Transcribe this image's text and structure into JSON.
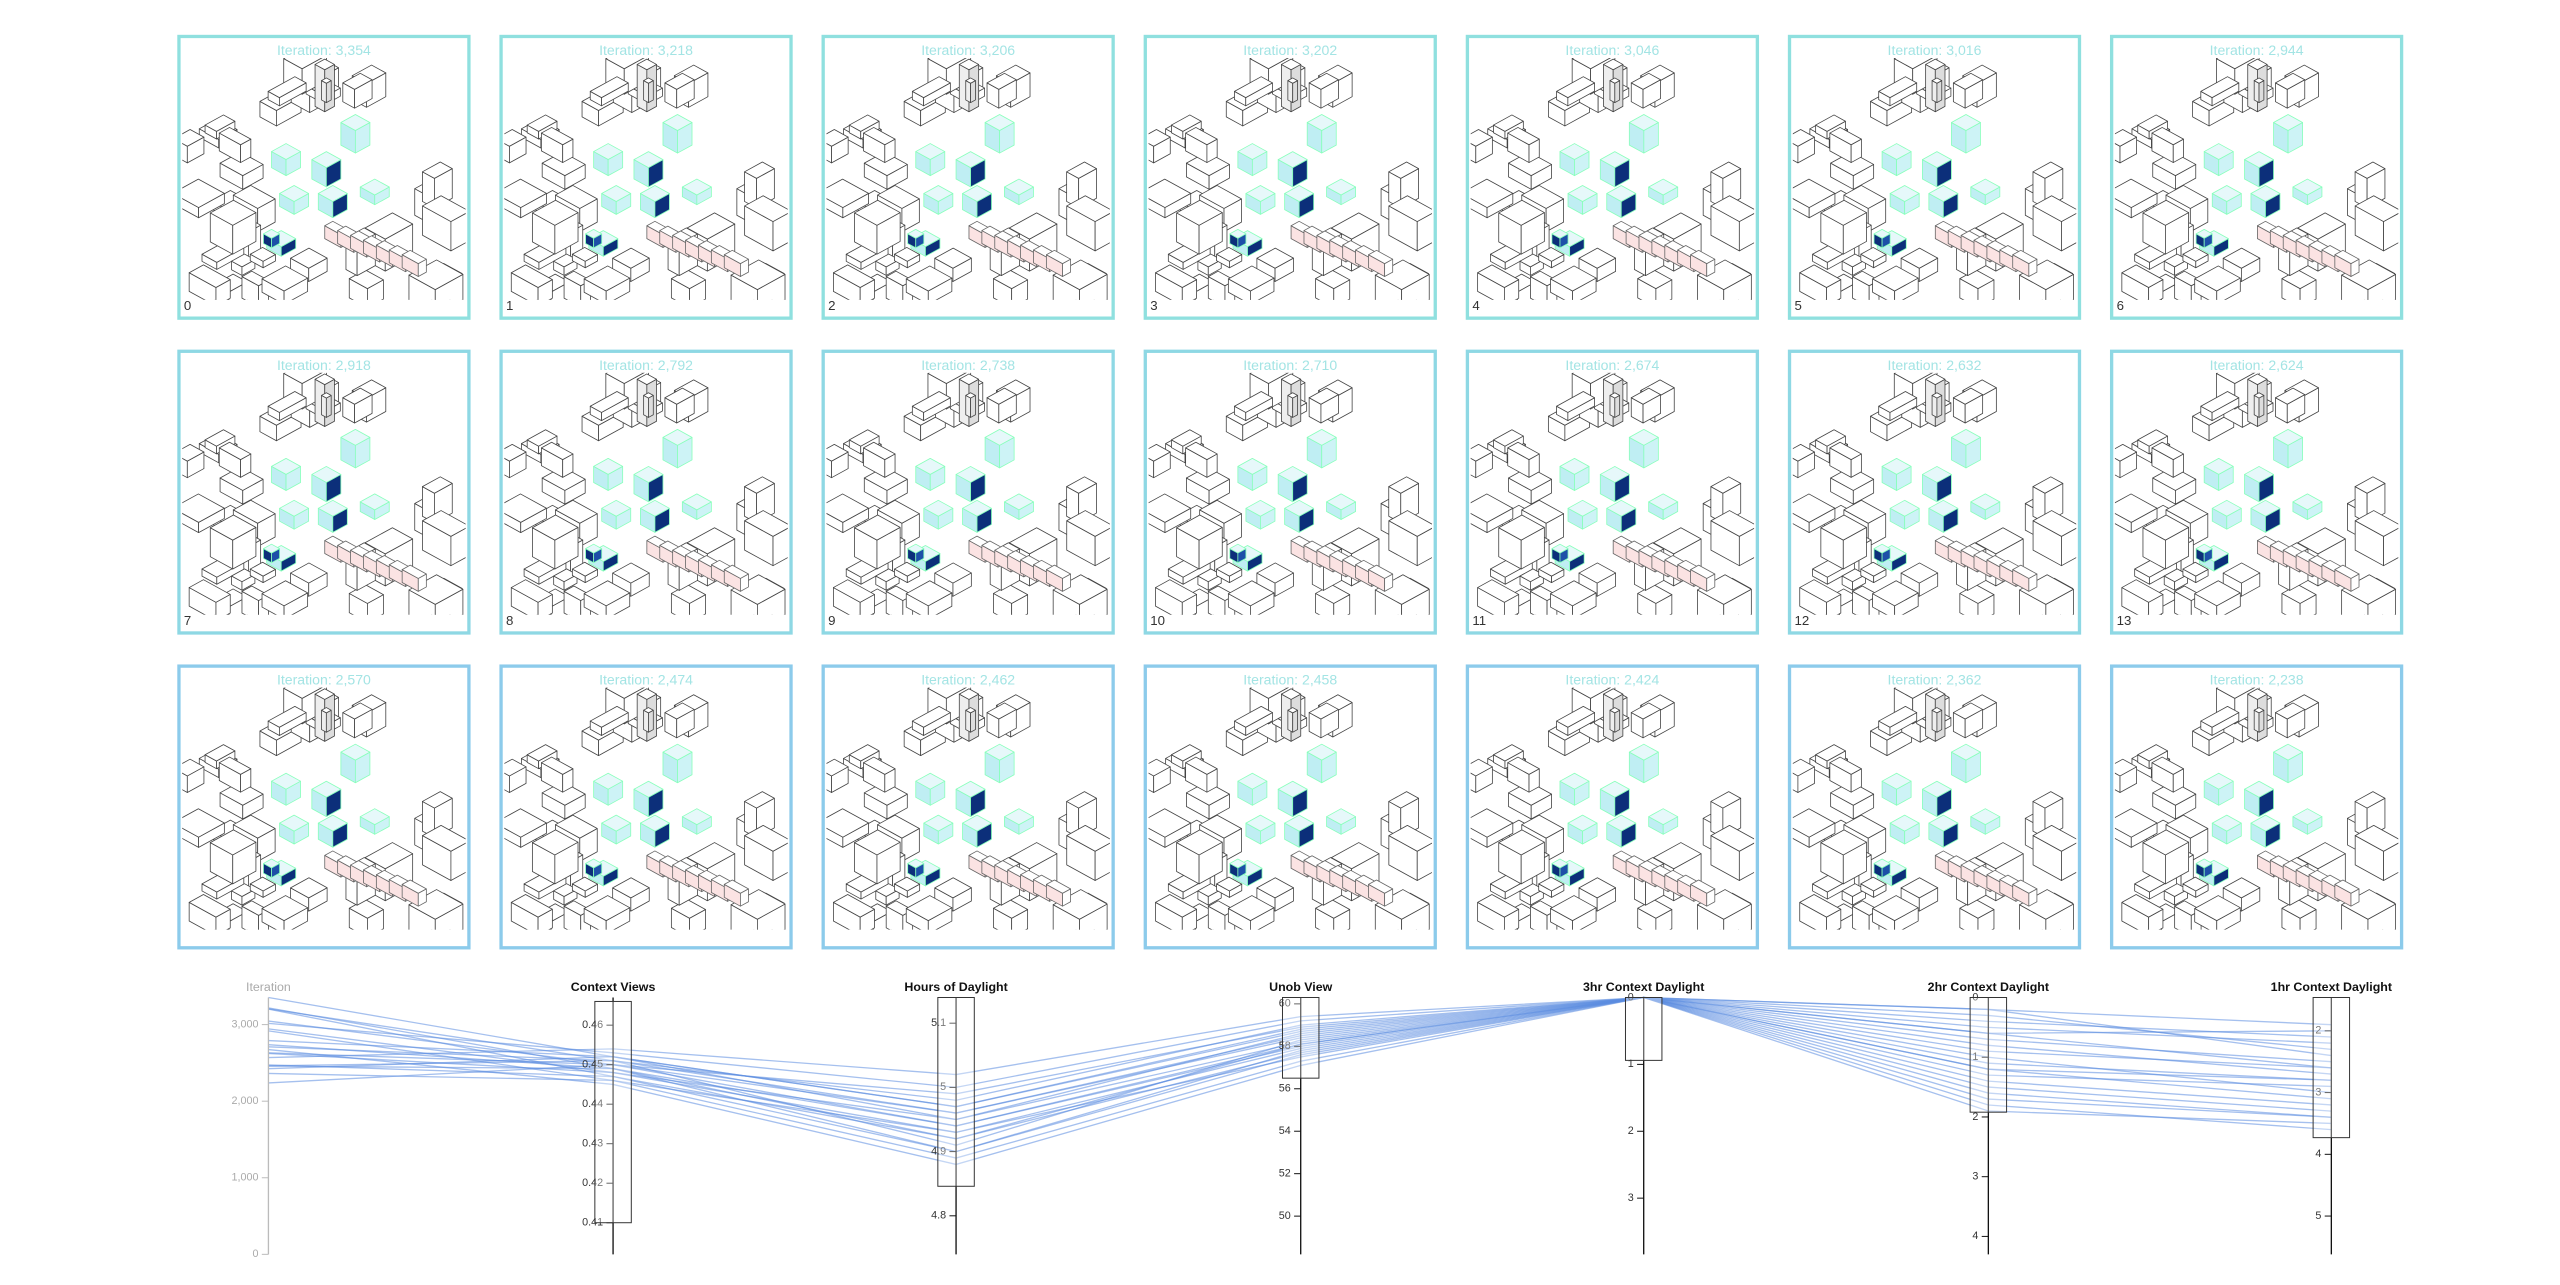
{
  "cards": [
    {
      "title": "Iteration: 3,354",
      "index": "0"
    },
    {
      "title": "Iteration: 3,218",
      "index": "1"
    },
    {
      "title": "Iteration: 3,206",
      "index": "2"
    },
    {
      "title": "Iteration: 3,202",
      "index": "3"
    },
    {
      "title": "Iteration: 3,046",
      "index": "4"
    },
    {
      "title": "Iteration: 3,016",
      "index": "5"
    },
    {
      "title": "Iteration: 2,944",
      "index": "6"
    },
    {
      "title": "Iteration: 2,918",
      "index": "7"
    },
    {
      "title": "Iteration: 2,792",
      "index": "8"
    },
    {
      "title": "Iteration: 2,738",
      "index": "9"
    },
    {
      "title": "Iteration: 2,710",
      "index": "10"
    },
    {
      "title": "Iteration: 2,674",
      "index": "11"
    },
    {
      "title": "Iteration: 2,632",
      "index": "12"
    },
    {
      "title": "Iteration: 2,624",
      "index": "13"
    },
    {
      "title": "Iteration: 2,570"
    },
    {
      "title": "Iteration: 2,474"
    },
    {
      "title": "Iteration: 2,462"
    },
    {
      "title": "Iteration: 2,458"
    },
    {
      "title": "Iteration: 2,424"
    },
    {
      "title": "Iteration: 2,362"
    },
    {
      "title": "Iteration: 2,238"
    }
  ],
  "chart_data": {
    "type": "parallel",
    "line_color": "#5b8de0",
    "dimensions": [
      {
        "name": "Iteration",
        "ylim": [
          0,
          3354
        ],
        "yticks": [
          0,
          {
            "value": 1000,
            "label": "1,000"
          },
          {
            "value": 2000,
            "label": "2,000"
          },
          {
            "value": 3000,
            "label": "3,000"
          }
        ]
      },
      {
        "name": "Context Views",
        "ylim": [
          0.402,
          0.467
        ],
        "yticks": [
          0.46,
          0.45,
          0.44,
          0.43,
          0.42,
          0.41
        ],
        "brush": [
          0.41,
          0.466
        ]
      },
      {
        "name": "Hours of Daylight",
        "ylim": [
          4.74,
          5.14
        ],
        "yticks": [
          5.1,
          5,
          4.9,
          4.8
        ],
        "brush": [
          4.846,
          5.14
        ]
      },
      {
        "name": "Unob View",
        "ylim": [
          48.2,
          60.3
        ],
        "yticks": [
          60,
          58,
          56,
          54,
          52,
          50
        ],
        "brush": [
          56.5,
          60.3
        ]
      },
      {
        "name": "3hr Context Daylight",
        "ylim": [
          3.84,
          0
        ],
        "yticks": [
          0,
          1,
          2,
          3
        ],
        "brush": [
          0,
          0.94
        ]
      },
      {
        "name": "2hr Context Daylight",
        "ylim": [
          4.3,
          0
        ],
        "yticks": [
          0,
          1,
          2,
          3,
          4
        ],
        "brush": [
          0,
          1.92
        ]
      },
      {
        "name": "1hr Context Daylight",
        "ylim": [
          5.62,
          1.46
        ],
        "yticks": [
          2,
          3,
          4,
          5
        ],
        "brush": [
          1.46,
          3.73
        ]
      }
    ],
    "lines": [
      [
        3354,
        0.452,
        4.95,
        58.6,
        0,
        0.4,
        2.1
      ],
      [
        3218,
        0.449,
        4.92,
        58.1,
        0,
        0.9,
        2.6
      ],
      [
        3206,
        0.451,
        4.98,
        59.0,
        0,
        1.2,
        3.1
      ],
      [
        3202,
        0.447,
        4.9,
        57.6,
        0,
        0.2,
        2.4
      ],
      [
        3046,
        0.45,
        4.96,
        58.4,
        0,
        1.6,
        3.4
      ],
      [
        3016,
        0.453,
        5.0,
        59.2,
        0,
        0.6,
        2.0
      ],
      [
        2944,
        0.448,
        4.93,
        57.9,
        0,
        1.8,
        3.6
      ],
      [
        2918,
        0.446,
        4.89,
        57.3,
        0,
        1.1,
        2.8
      ],
      [
        2792,
        0.452,
        4.97,
        58.8,
        0,
        0.3,
        2.3
      ],
      [
        2738,
        0.449,
        4.94,
        58.0,
        0,
        1.4,
        3.2
      ],
      [
        2710,
        0.451,
        4.91,
        58.3,
        0,
        0.7,
        2.5
      ],
      [
        2674,
        0.445,
        4.88,
        57.1,
        0,
        1.9,
        3.5
      ],
      [
        2632,
        0.45,
        4.99,
        58.9,
        0,
        0.5,
        2.2
      ],
      [
        2624,
        0.448,
        4.95,
        58.2,
        0,
        1.3,
        2.9
      ],
      [
        2570,
        0.454,
        5.02,
        59.4,
        0,
        0.8,
        2.7
      ],
      [
        2474,
        0.447,
        4.92,
        57.7,
        0,
        1.5,
        3.3
      ],
      [
        2462,
        0.451,
        4.96,
        58.5,
        0,
        0.2,
        1.9
      ],
      [
        2458,
        0.449,
        4.9,
        57.8,
        0,
        1.0,
        3.0
      ],
      [
        2424,
        0.452,
        4.97,
        58.7,
        0,
        1.7,
        3.4
      ],
      [
        2362,
        0.446,
        4.93,
        57.5,
        0,
        0.6,
        2.6
      ],
      [
        2238,
        0.45,
        4.94,
        58.1,
        0,
        1.2,
        2.8
      ]
    ]
  }
}
